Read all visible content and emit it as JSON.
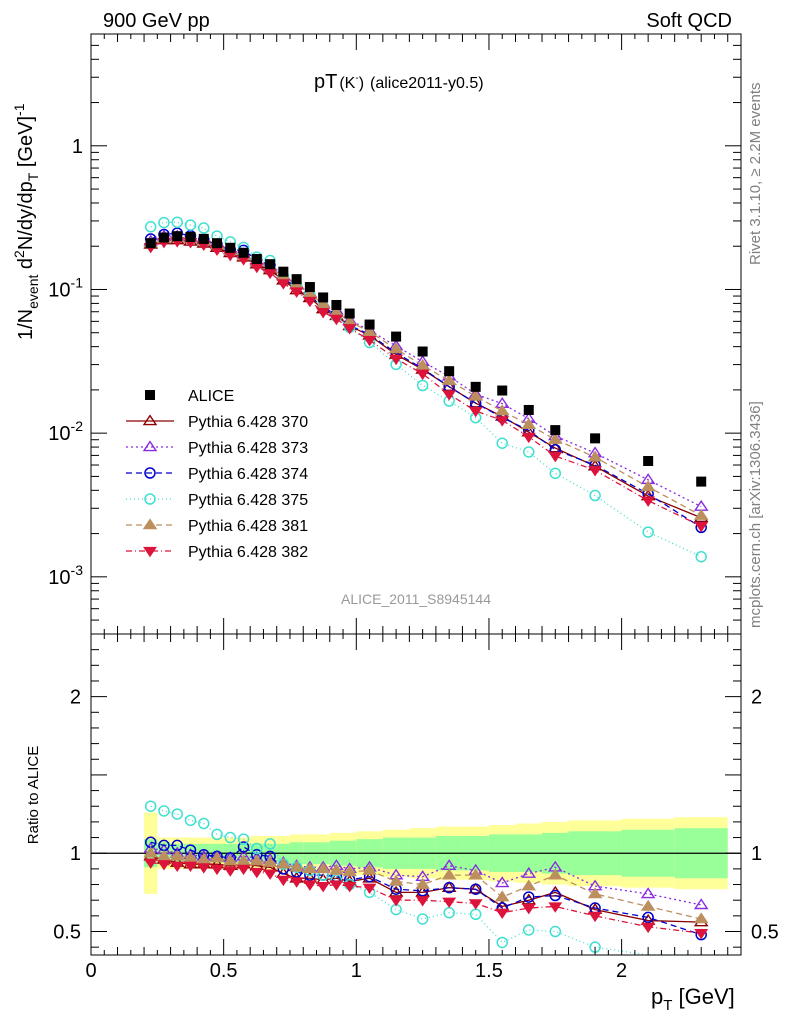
{
  "header": {
    "left": "900 GeV pp",
    "right": "Soft QCD"
  },
  "title_main": "pT",
  "title_particle": "(K",
  "title_particle_sup": "-",
  "title_particle_close": ")",
  "title_tag": "(alice2011-y0.5)",
  "side_top": "Rivet 3.1.10, ≥ 2.2M events",
  "side_bottom": "mcplots.cern.ch [arXiv:1306.3436]",
  "analysis_id": "ALICE_2011_S8945144",
  "y_label_main": "1/N",
  "y_label_sub1": "event",
  "y_label_mid": " d",
  "y_label_sup2": "2",
  "y_label_rest": "N/dy/dp",
  "y_label_sub2": "T",
  "y_label_unit": " [GeV]",
  "y_label_unitsup": "-1",
  "ratio_ylabel": "Ratio to ALICE",
  "x_label": "p",
  "x_label_sub": "T",
  "x_label_unit": " [GeV]",
  "main_yticks": [
    {
      "label": "1",
      "exp": "",
      "value": 1
    },
    {
      "label": "10",
      "exp": "-1",
      "value": 0.1
    },
    {
      "label": "10",
      "exp": "-2",
      "value": 0.01
    },
    {
      "label": "10",
      "exp": "-3",
      "value": 0.001
    }
  ],
  "ratio_yticks": [
    {
      "label": "2",
      "value": 2
    },
    {
      "label": "1",
      "value": 1
    },
    {
      "label": "0.5",
      "value": 0.5
    }
  ],
  "xticks": [
    {
      "label": "0",
      "value": 0
    },
    {
      "label": "0.5",
      "value": 0.5
    },
    {
      "label": "1",
      "value": 1
    },
    {
      "label": "1.5",
      "value": 1.5
    },
    {
      "label": "2",
      "value": 2
    }
  ],
  "chart_data": {
    "type": "scatter",
    "x_range": [
      0,
      2.45
    ],
    "main_ylim": [
      0.0004,
      6
    ],
    "main_log_y": true,
    "ratio_ylim": [
      0.35,
      2.4
    ],
    "legend_position": "lower-left",
    "x": [
      0.225,
      0.275,
      0.325,
      0.375,
      0.425,
      0.475,
      0.525,
      0.575,
      0.625,
      0.675,
      0.725,
      0.775,
      0.825,
      0.875,
      0.925,
      0.975,
      1.05,
      1.15,
      1.25,
      1.35,
      1.45,
      1.55,
      1.65,
      1.75,
      1.9,
      2.1,
      2.3
    ],
    "x_edges": [
      0.2,
      0.25,
      0.3,
      0.35,
      0.4,
      0.45,
      0.5,
      0.55,
      0.6,
      0.65,
      0.7,
      0.75,
      0.8,
      0.85,
      0.9,
      0.95,
      1.0,
      1.1,
      1.2,
      1.3,
      1.4,
      1.5,
      1.6,
      1.7,
      1.8,
      2.0,
      2.2,
      2.4
    ],
    "data": {
      "name": "ALICE",
      "color": "#000000",
      "values": [
        0.21,
        0.23,
        0.235,
        0.232,
        0.225,
        0.21,
        0.195,
        0.18,
        0.163,
        0.15,
        0.133,
        0.118,
        0.104,
        0.088,
        0.078,
        0.068,
        0.057,
        0.047,
        0.037,
        0.027,
        0.021,
        0.0198,
        0.0145,
        0.0105,
        0.0092,
        0.0064,
        0.0046
      ],
      "band_stat": [
        0.09,
        0.07,
        0.06,
        0.06,
        0.06,
        0.06,
        0.06,
        0.06,
        0.06,
        0.06,
        0.06,
        0.07,
        0.07,
        0.07,
        0.08,
        0.08,
        0.09,
        0.1,
        0.1,
        0.11,
        0.11,
        0.12,
        0.12,
        0.13,
        0.14,
        0.15,
        0.16
      ],
      "band_tot": [
        0.26,
        0.1,
        0.1,
        0.1,
        0.1,
        0.1,
        0.1,
        0.1,
        0.11,
        0.11,
        0.11,
        0.12,
        0.12,
        0.12,
        0.13,
        0.13,
        0.14,
        0.15,
        0.16,
        0.17,
        0.17,
        0.18,
        0.19,
        0.2,
        0.21,
        0.22,
        0.23
      ],
      "band_stat_color": "#99ff99",
      "band_tot_color": "#ffff99"
    },
    "series": [
      {
        "name": "Pythia 6.428 370",
        "color": "#8b0000",
        "marker": "triangle-open",
        "dash": "",
        "ratio": [
          0.98,
          0.96,
          0.94,
          0.93,
          0.93,
          0.93,
          0.92,
          0.93,
          0.92,
          0.91,
          0.87,
          0.84,
          0.84,
          0.83,
          0.84,
          0.82,
          0.84,
          0.75,
          0.75,
          0.78,
          0.77,
          0.66,
          0.7,
          0.75,
          0.64,
          0.57,
          0.56
        ]
      },
      {
        "name": "Pythia 6.428 373",
        "color": "#8a2be2",
        "marker": "triangle-open",
        "dash": "2,3",
        "ratio": [
          1.03,
          1.02,
          1.0,
          0.99,
          0.98,
          0.98,
          0.97,
          0.98,
          0.97,
          0.96,
          0.94,
          0.92,
          0.91,
          0.91,
          0.92,
          0.9,
          0.91,
          0.86,
          0.85,
          0.92,
          0.89,
          0.81,
          0.87,
          0.91,
          0.79,
          0.74,
          0.67
        ]
      },
      {
        "name": "Pythia 6.428 374",
        "color": "#0000cd",
        "marker": "circle-open",
        "dash": "6,4",
        "ratio": [
          1.07,
          1.05,
          1.05,
          1.02,
          0.99,
          0.98,
          0.97,
          1.04,
          0.99,
          0.98,
          0.9,
          0.88,
          0.86,
          0.86,
          0.85,
          0.83,
          0.85,
          0.77,
          0.76,
          0.78,
          0.77,
          0.65,
          0.72,
          0.73,
          0.65,
          0.59,
          0.48
        ]
      },
      {
        "name": "Pythia 6.428 375",
        "color": "#40e0d0",
        "marker": "circle-open",
        "dash": "1,3",
        "ratio": [
          1.3,
          1.27,
          1.25,
          1.21,
          1.19,
          1.12,
          1.1,
          1.09,
          1.03,
          1.06,
          0.93,
          0.91,
          0.89,
          0.86,
          0.83,
          0.8,
          0.75,
          0.64,
          0.58,
          0.62,
          0.61,
          0.43,
          0.51,
          0.5,
          0.4,
          0.32,
          0.3
        ]
      },
      {
        "name": "Pythia 6.428 381",
        "color": "#bc8f5f",
        "marker": "triangle-filled",
        "dash": "6,4",
        "ratio": [
          1.0,
          0.98,
          0.98,
          0.97,
          0.96,
          0.97,
          0.95,
          0.95,
          0.95,
          0.94,
          0.93,
          0.91,
          0.9,
          0.9,
          0.89,
          0.88,
          0.89,
          0.82,
          0.8,
          0.86,
          0.86,
          0.72,
          0.79,
          0.86,
          0.74,
          0.66,
          0.58
        ]
      },
      {
        "name": "Pythia 6.428 382",
        "color": "#dc143c",
        "marker": "triangle-down-filled",
        "dash": "6,3,1,3",
        "ratio": [
          0.94,
          0.93,
          0.92,
          0.92,
          0.91,
          0.9,
          0.89,
          0.9,
          0.88,
          0.87,
          0.83,
          0.82,
          0.8,
          0.79,
          0.8,
          0.79,
          0.78,
          0.7,
          0.7,
          0.69,
          0.68,
          0.62,
          0.65,
          0.66,
          0.6,
          0.53,
          0.49
        ]
      }
    ]
  }
}
